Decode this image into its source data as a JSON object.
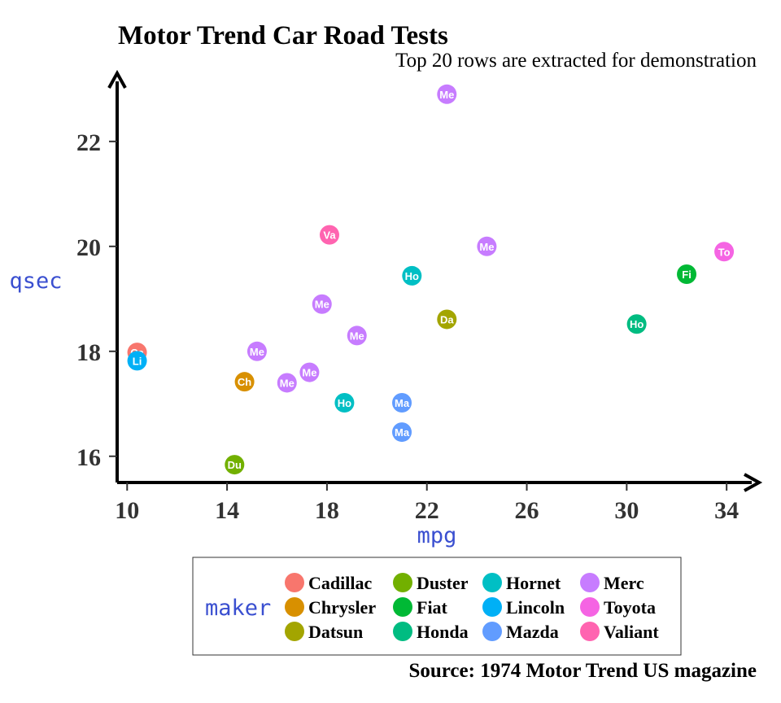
{
  "chart_data": {
    "type": "scatter",
    "title": "Motor Trend Car Road Tests",
    "subtitle": "Top 20 rows are extracted for demonstration",
    "caption": "Source: 1974 Motor Trend US magazine",
    "xlabel": "mpg",
    "ylabel": "qsec",
    "xlim": [
      9.6,
      35.2
    ],
    "ylim": [
      15.5,
      23.3
    ],
    "xticks": [
      10,
      14,
      18,
      22,
      26,
      30,
      34
    ],
    "yticks": [
      16,
      18,
      20,
      22
    ],
    "legend": {
      "title": "maker",
      "position": "bottom",
      "items": [
        {
          "name": "Cadillac",
          "color": "#F8766D"
        },
        {
          "name": "Chrysler",
          "color": "#D89000"
        },
        {
          "name": "Datsun",
          "color": "#A3A500"
        },
        {
          "name": "Duster",
          "color": "#72B000"
        },
        {
          "name": "Fiat",
          "color": "#00B935"
        },
        {
          "name": "Honda",
          "color": "#00BC81"
        },
        {
          "name": "Hornet",
          "color": "#00BFC4"
        },
        {
          "name": "Lincoln",
          "color": "#00B0F6"
        },
        {
          "name": "Mazda",
          "color": "#619CFF"
        },
        {
          "name": "Merc",
          "color": "#C77CFF"
        },
        {
          "name": "Toyota",
          "color": "#F564E3"
        },
        {
          "name": "Valiant",
          "color": "#FF64B0"
        }
      ]
    },
    "points": [
      {
        "label": "Ma",
        "maker": "Mazda",
        "x": 21.0,
        "y": 16.46
      },
      {
        "label": "Ma",
        "maker": "Mazda",
        "x": 21.0,
        "y": 17.02
      },
      {
        "label": "Da",
        "maker": "Datsun",
        "x": 22.8,
        "y": 18.61
      },
      {
        "label": "Ho",
        "maker": "Hornet",
        "x": 21.4,
        "y": 19.44
      },
      {
        "label": "Ho",
        "maker": "Hornet",
        "x": 18.7,
        "y": 17.02
      },
      {
        "label": "Va",
        "maker": "Valiant",
        "x": 18.1,
        "y": 20.22
      },
      {
        "label": "Du",
        "maker": "Duster",
        "x": 14.3,
        "y": 15.84
      },
      {
        "label": "Me",
        "maker": "Merc",
        "x": 24.4,
        "y": 20.0
      },
      {
        "label": "Me",
        "maker": "Merc",
        "x": 22.8,
        "y": 22.9
      },
      {
        "label": "Me",
        "maker": "Merc",
        "x": 19.2,
        "y": 18.3
      },
      {
        "label": "Me",
        "maker": "Merc",
        "x": 17.8,
        "y": 18.9
      },
      {
        "label": "Me",
        "maker": "Merc",
        "x": 16.4,
        "y": 17.4
      },
      {
        "label": "Me",
        "maker": "Merc",
        "x": 17.3,
        "y": 17.6
      },
      {
        "label": "Me",
        "maker": "Merc",
        "x": 15.2,
        "y": 18.0
      },
      {
        "label": "Ca",
        "maker": "Cadillac",
        "x": 10.4,
        "y": 17.98
      },
      {
        "label": "Li",
        "maker": "Lincoln",
        "x": 10.4,
        "y": 17.82
      },
      {
        "label": "Ch",
        "maker": "Chrysler",
        "x": 14.7,
        "y": 17.42
      },
      {
        "label": "Fi",
        "maker": "Fiat",
        "x": 32.4,
        "y": 19.47
      },
      {
        "label": "Ho",
        "maker": "Honda",
        "x": 30.4,
        "y": 18.52
      },
      {
        "label": "To",
        "maker": "Toyota",
        "x": 33.9,
        "y": 19.9
      }
    ]
  }
}
